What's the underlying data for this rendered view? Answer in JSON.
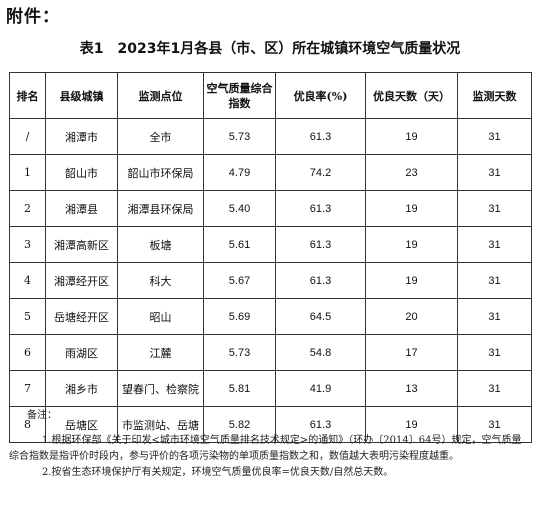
{
  "attachment_label": "附件：",
  "title": "表1　2023年1月各县（市、区）所在城镇环境空气质量状况",
  "table": {
    "headers": [
      "排名",
      "县级城镇",
      "监测点位",
      "空气质量综合指数",
      "优良率(%)",
      "优良天数（天）",
      "监测天数"
    ],
    "rows": [
      [
        "/",
        "湘潭市",
        "全市",
        "5.73",
        "61.3",
        "19",
        "31"
      ],
      [
        "1",
        "韶山市",
        "韶山市环保局",
        "4.79",
        "74.2",
        "23",
        "31"
      ],
      [
        "2",
        "湘潭县",
        "湘潭县环保局",
        "5.40",
        "61.3",
        "19",
        "31"
      ],
      [
        "3",
        "湘潭高新区",
        "板塘",
        "5.61",
        "61.3",
        "19",
        "31"
      ],
      [
        "4",
        "湘潭经开区",
        "科大",
        "5.67",
        "61.3",
        "19",
        "31"
      ],
      [
        "5",
        "岳塘经开区",
        "昭山",
        "5.69",
        "64.5",
        "20",
        "31"
      ],
      [
        "6",
        "雨湖区",
        "江麓",
        "5.73",
        "54.8",
        "17",
        "31"
      ],
      [
        "7",
        "湘乡市",
        "望春门、检察院",
        "5.81",
        "41.9",
        "13",
        "31"
      ],
      [
        "8",
        "岳塘区",
        "市监测站、岳塘",
        "5.82",
        "61.3",
        "19",
        "31"
      ]
    ]
  },
  "notes": {
    "label": "备注：",
    "items": [
      "1.根据环保部《关于印发<城市环境空气质量排名技术规定>的通知》（环办〔2014〕64号）规定，空气质量综合指数是指评价时段内，参与评价的各项污染物的单项质量指数之和，数值越大表明污染程度越重。",
      "2.按省生态环境保护厅有关规定，环境空气质量优良率=优良天数/自然总天数。"
    ]
  }
}
